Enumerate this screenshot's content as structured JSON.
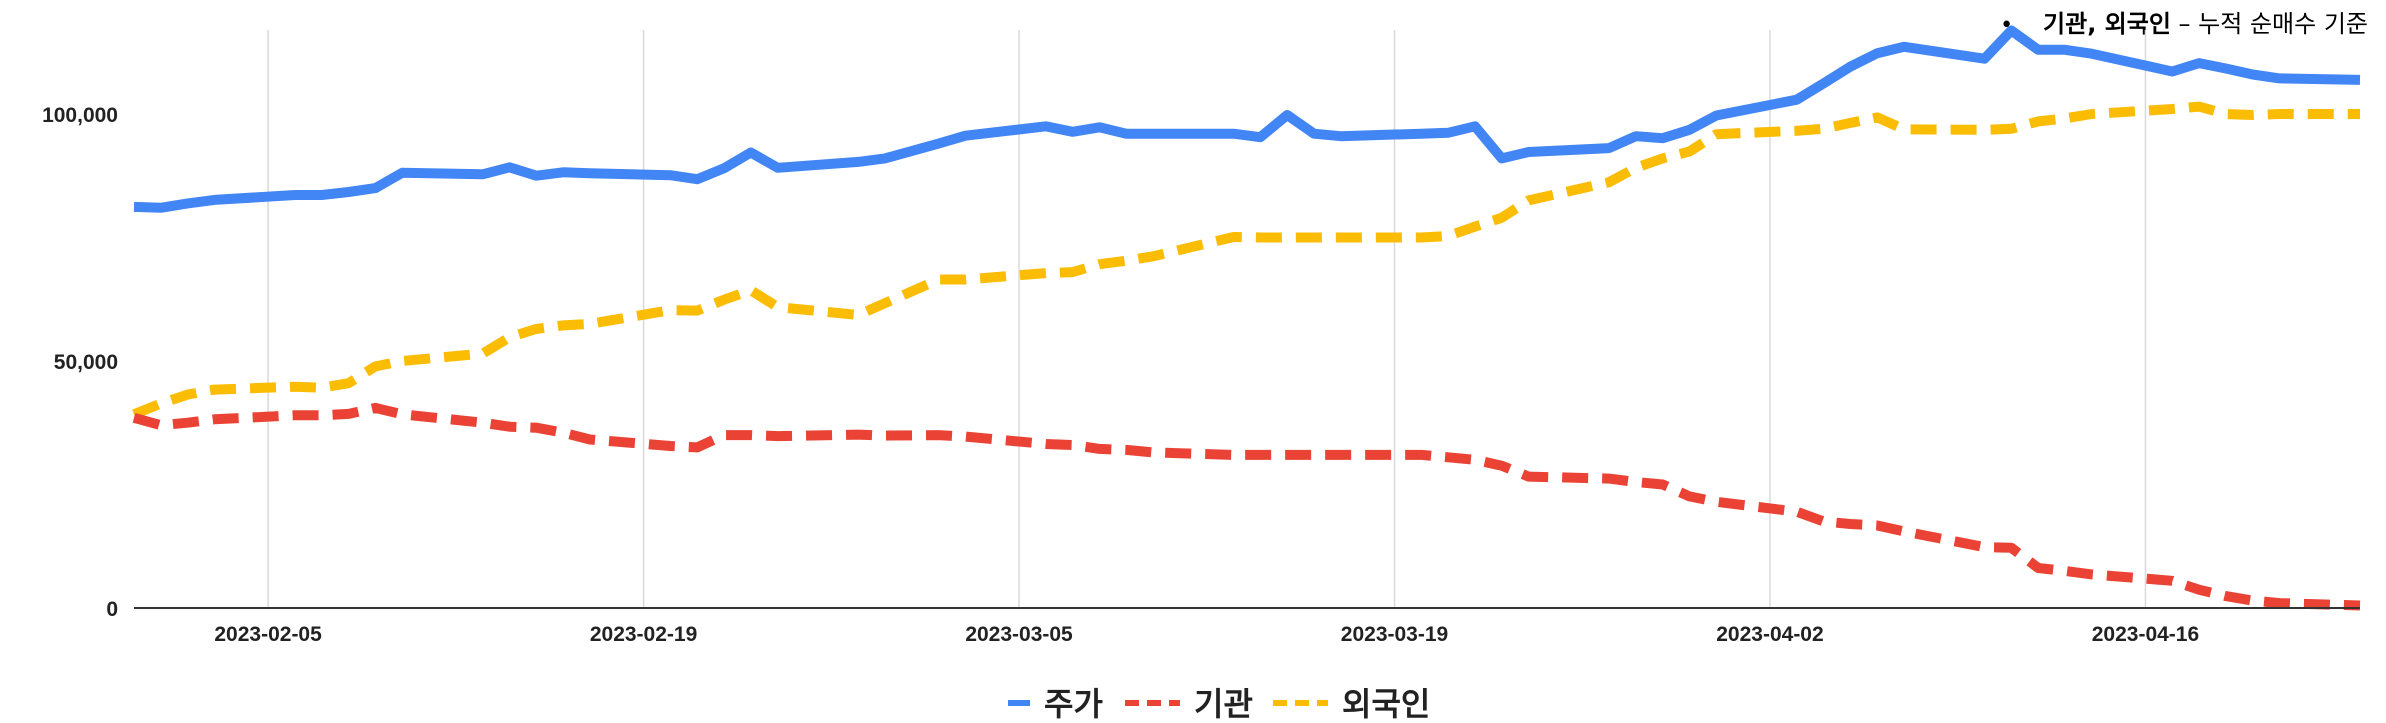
{
  "note": {
    "bullet": "•",
    "bold": "기관, 외국인",
    "rest": " – 누적 순매수 기준"
  },
  "chart_data": {
    "type": "line",
    "x": [
      "2023-01-31",
      "2023-02-01",
      "2023-02-02",
      "2023-02-03",
      "2023-02-06",
      "2023-02-07",
      "2023-02-08",
      "2023-02-09",
      "2023-02-10",
      "2023-02-13",
      "2023-02-14",
      "2023-02-15",
      "2023-02-16",
      "2023-02-17",
      "2023-02-20",
      "2023-02-21",
      "2023-02-22",
      "2023-02-23",
      "2023-02-24",
      "2023-02-27",
      "2023-02-28",
      "2023-03-02",
      "2023-03-03",
      "2023-03-06",
      "2023-03-07",
      "2023-03-08",
      "2023-03-09",
      "2023-03-10",
      "2023-03-13",
      "2023-03-14",
      "2023-03-15",
      "2023-03-16",
      "2023-03-17",
      "2023-03-20",
      "2023-03-21",
      "2023-03-22",
      "2023-03-23",
      "2023-03-24",
      "2023-03-27",
      "2023-03-28",
      "2023-03-29",
      "2023-03-30",
      "2023-03-31",
      "2023-04-03",
      "2023-04-04",
      "2023-04-05",
      "2023-04-06",
      "2023-04-07",
      "2023-04-10",
      "2023-04-11",
      "2023-04-12",
      "2023-04-13",
      "2023-04-14",
      "2023-04-17",
      "2023-04-18",
      "2023-04-19",
      "2023-04-20",
      "2023-04-21",
      "2023-04-24"
    ],
    "series": [
      {
        "name": "주가",
        "color": "#4285f4",
        "dash": "solid",
        "values": [
          81200,
          81000,
          81900,
          82600,
          83600,
          83600,
          84200,
          85000,
          88100,
          87800,
          89200,
          87500,
          88200,
          88000,
          87600,
          86800,
          89000,
          92200,
          89100,
          90300,
          91000,
          94000,
          95600,
          97500,
          96400,
          97300,
          96000,
          96000,
          96000,
          95300,
          99800,
          96000,
          95500,
          96000,
          96200,
          97500,
          91000,
          92300,
          93100,
          95500,
          95100,
          96800,
          99700,
          102900,
          106200,
          109600,
          112300,
          113600,
          111200,
          116900,
          113000,
          113000,
          112200,
          108600,
          110300,
          109200,
          108000,
          107200,
          106900
        ]
      },
      {
        "name": "기관",
        "color": "#ea4335",
        "dash": "dashed",
        "values": [
          38500,
          37000,
          37500,
          38200,
          39000,
          39000,
          39300,
          40500,
          39200,
          37500,
          36700,
          36500,
          35500,
          34100,
          32800,
          32500,
          35000,
          35000,
          34800,
          35100,
          34900,
          35000,
          34700,
          33200,
          33000,
          32200,
          32000,
          31500,
          31000,
          31000,
          31000,
          31000,
          31000,
          31000,
          30500,
          30000,
          28800,
          26600,
          26200,
          25500,
          25000,
          22600,
          21500,
          19500,
          17500,
          17000,
          16700,
          15500,
          12300,
          12200,
          8100,
          7500,
          6800,
          5500,
          3700,
          2400,
          1500,
          1000,
          500
        ]
      },
      {
        "name": "외국인",
        "color": "#fbbc04",
        "dash": "dashed",
        "values": [
          39200,
          41400,
          43200,
          44200,
          44800,
          44600,
          45500,
          48900,
          50000,
          51500,
          54800,
          56500,
          57200,
          57500,
          60300,
          60200,
          62400,
          64300,
          60900,
          59300,
          61700,
          66500,
          66500,
          67800,
          68000,
          69600,
          70300,
          71200,
          75100,
          75000,
          75000,
          75000,
          75000,
          75000,
          75300,
          77200,
          79000,
          82500,
          86200,
          89100,
          91000,
          92400,
          95900,
          96600,
          97000,
          98200,
          99300,
          96900,
          96800,
          97000,
          98500,
          99100,
          100000,
          101000,
          101500,
          100000,
          99800,
          100000,
          100000
        ]
      }
    ],
    "ylim": [
      0,
      117000
    ],
    "yticks": [
      0,
      50000,
      100000
    ],
    "ytick_labels": [
      "0",
      "50,000",
      "100,000"
    ],
    "xticks": [
      "2023-02-05",
      "2023-02-19",
      "2023-03-05",
      "2023-03-19",
      "2023-04-02",
      "2023-04-16"
    ],
    "x_range": [
      "2023-01-31",
      "2023-04-24"
    ],
    "grid": "vertical",
    "legend_position": "bottom-center"
  }
}
